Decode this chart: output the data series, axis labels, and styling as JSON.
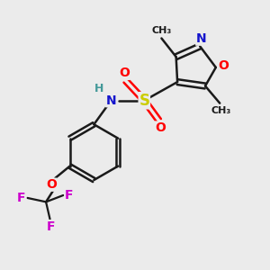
{
  "bg_color": "#ebebeb",
  "bond_color": "#1a1a1a",
  "atom_colors": {
    "N_ring": "#1414cc",
    "O_ring": "#ff0000",
    "O": "#ff0000",
    "S": "#cccc00",
    "F": "#cc00cc",
    "N": "#1414cc",
    "H": "#449999",
    "C": "#1a1a1a"
  },
  "font_size": 10,
  "figsize": [
    3.0,
    3.0
  ],
  "dpi": 100
}
